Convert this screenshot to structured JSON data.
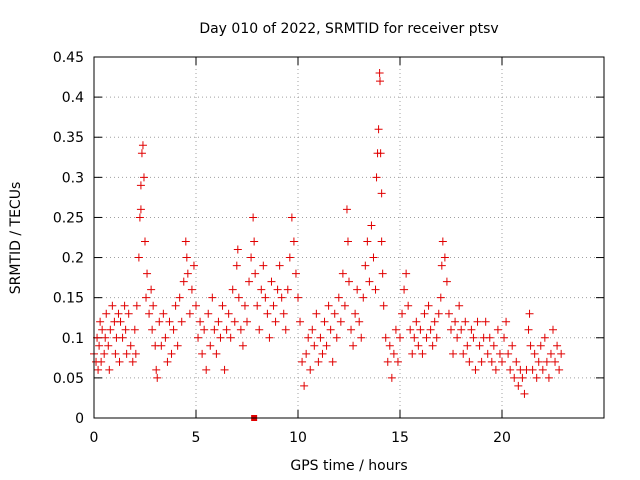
{
  "chart_data": {
    "type": "scatter",
    "title": "Day 010 of 2022, SRMTID for receiver ptsv",
    "xlabel": "GPS time / hours",
    "ylabel": "SRMTID / TECUs",
    "xlim": [
      0,
      25
    ],
    "ylim": [
      0,
      0.45
    ],
    "grid": true,
    "marker": "+",
    "color": "#e00000",
    "x_ticks": [
      0,
      5,
      10,
      15,
      20
    ],
    "x_tick_labels": [
      "0",
      "5",
      "10",
      "15",
      "20"
    ],
    "y_ticks": [
      0,
      0.05,
      0.1,
      0.15,
      0.2,
      0.25,
      0.3,
      0.35,
      0.4,
      0.45
    ],
    "y_tick_labels": [
      "0",
      "0.05",
      "0.1",
      "0.15",
      "0.2",
      "0.25",
      "0.3",
      "0.35",
      "0.4",
      "0.45"
    ],
    "series": [
      {
        "name": "SRMTID",
        "points": [
          [
            0.0,
            0.08
          ],
          [
            0.1,
            0.07
          ],
          [
            0.15,
            0.1
          ],
          [
            0.2,
            0.06
          ],
          [
            0.25,
            0.09
          ],
          [
            0.3,
            0.12
          ],
          [
            0.35,
            0.07
          ],
          [
            0.4,
            0.11
          ],
          [
            0.5,
            0.08
          ],
          [
            0.55,
            0.1
          ],
          [
            0.6,
            0.13
          ],
          [
            0.7,
            0.09
          ],
          [
            0.75,
            0.06
          ],
          [
            0.8,
            0.11
          ],
          [
            0.9,
            0.14
          ],
          [
            1.0,
            0.12
          ],
          [
            1.05,
            0.08
          ],
          [
            1.1,
            0.1
          ],
          [
            1.2,
            0.13
          ],
          [
            1.25,
            0.07
          ],
          [
            1.3,
            0.12
          ],
          [
            1.4,
            0.1
          ],
          [
            1.5,
            0.14
          ],
          [
            1.55,
            0.11
          ],
          [
            1.6,
            0.08
          ],
          [
            1.7,
            0.13
          ],
          [
            1.8,
            0.09
          ],
          [
            1.9,
            0.07
          ],
          [
            2.0,
            0.11
          ],
          [
            2.05,
            0.08
          ],
          [
            2.1,
            0.14
          ],
          [
            2.2,
            0.2
          ],
          [
            2.25,
            0.25
          ],
          [
            2.3,
            0.29
          ],
          [
            2.35,
            0.33
          ],
          [
            2.4,
            0.34
          ],
          [
            2.45,
            0.3
          ],
          [
            2.3,
            0.26
          ],
          [
            2.5,
            0.22
          ],
          [
            2.6,
            0.18
          ],
          [
            2.55,
            0.15
          ],
          [
            2.7,
            0.13
          ],
          [
            2.8,
            0.16
          ],
          [
            2.85,
            0.11
          ],
          [
            2.9,
            0.14
          ],
          [
            3.0,
            0.09
          ],
          [
            3.05,
            0.06
          ],
          [
            3.1,
            0.05
          ],
          [
            3.2,
            0.12
          ],
          [
            3.3,
            0.09
          ],
          [
            3.4,
            0.13
          ],
          [
            3.5,
            0.1
          ],
          [
            3.6,
            0.07
          ],
          [
            3.7,
            0.12
          ],
          [
            3.8,
            0.08
          ],
          [
            3.9,
            0.11
          ],
          [
            4.0,
            0.14
          ],
          [
            4.1,
            0.09
          ],
          [
            4.2,
            0.15
          ],
          [
            4.3,
            0.12
          ],
          [
            4.4,
            0.17
          ],
          [
            4.5,
            0.22
          ],
          [
            4.55,
            0.2
          ],
          [
            4.6,
            0.18
          ],
          [
            4.7,
            0.13
          ],
          [
            4.8,
            0.16
          ],
          [
            4.9,
            0.19
          ],
          [
            5.0,
            0.14
          ],
          [
            5.1,
            0.1
          ],
          [
            5.2,
            0.12
          ],
          [
            5.3,
            0.08
          ],
          [
            5.4,
            0.11
          ],
          [
            5.5,
            0.06
          ],
          [
            5.6,
            0.13
          ],
          [
            5.7,
            0.09
          ],
          [
            5.8,
            0.15
          ],
          [
            5.9,
            0.11
          ],
          [
            6.0,
            0.08
          ],
          [
            6.1,
            0.12
          ],
          [
            6.2,
            0.1
          ],
          [
            6.3,
            0.14
          ],
          [
            6.4,
            0.06
          ],
          [
            6.5,
            0.11
          ],
          [
            6.6,
            0.13
          ],
          [
            6.7,
            0.1
          ],
          [
            6.8,
            0.16
          ],
          [
            6.9,
            0.12
          ],
          [
            7.0,
            0.19
          ],
          [
            7.05,
            0.21
          ],
          [
            7.1,
            0.15
          ],
          [
            7.2,
            0.11
          ],
          [
            7.3,
            0.09
          ],
          [
            7.4,
            0.14
          ],
          [
            7.5,
            0.12
          ],
          [
            7.6,
            0.17
          ],
          [
            7.7,
            0.2
          ],
          [
            7.8,
            0.25
          ],
          [
            7.85,
            0.22
          ],
          [
            7.9,
            0.18
          ],
          [
            8.0,
            0.14
          ],
          [
            8.1,
            0.11
          ],
          [
            8.2,
            0.16
          ],
          [
            8.3,
            0.19
          ],
          [
            8.4,
            0.15
          ],
          [
            8.5,
            0.13
          ],
          [
            8.6,
            0.1
          ],
          [
            8.7,
            0.17
          ],
          [
            8.8,
            0.14
          ],
          [
            8.9,
            0.12
          ],
          [
            9.0,
            0.16
          ],
          [
            9.1,
            0.19
          ],
          [
            9.2,
            0.15
          ],
          [
            9.3,
            0.13
          ],
          [
            9.4,
            0.11
          ],
          [
            9.5,
            0.16
          ],
          [
            9.6,
            0.2
          ],
          [
            9.7,
            0.25
          ],
          [
            9.8,
            0.22
          ],
          [
            9.9,
            0.18
          ],
          [
            10.0,
            0.15
          ],
          [
            10.1,
            0.12
          ],
          [
            10.2,
            0.07
          ],
          [
            10.3,
            0.04
          ],
          [
            10.4,
            0.08
          ],
          [
            10.5,
            0.1
          ],
          [
            10.6,
            0.06
          ],
          [
            10.7,
            0.11
          ],
          [
            10.8,
            0.09
          ],
          [
            10.9,
            0.13
          ],
          [
            11.0,
            0.07
          ],
          [
            11.1,
            0.1
          ],
          [
            11.2,
            0.08
          ],
          [
            11.3,
            0.12
          ],
          [
            11.4,
            0.09
          ],
          [
            11.5,
            0.14
          ],
          [
            11.6,
            0.11
          ],
          [
            11.7,
            0.07
          ],
          [
            11.8,
            0.13
          ],
          [
            11.9,
            0.1
          ],
          [
            12.0,
            0.15
          ],
          [
            12.1,
            0.12
          ],
          [
            12.2,
            0.18
          ],
          [
            12.3,
            0.14
          ],
          [
            12.4,
            0.26
          ],
          [
            12.45,
            0.22
          ],
          [
            12.5,
            0.17
          ],
          [
            12.6,
            0.11
          ],
          [
            12.7,
            0.09
          ],
          [
            12.8,
            0.13
          ],
          [
            12.9,
            0.16
          ],
          [
            13.0,
            0.12
          ],
          [
            13.1,
            0.1
          ],
          [
            13.2,
            0.15
          ],
          [
            13.3,
            0.19
          ],
          [
            13.4,
            0.22
          ],
          [
            13.5,
            0.17
          ],
          [
            13.6,
            0.24
          ],
          [
            13.7,
            0.2
          ],
          [
            13.8,
            0.16
          ],
          [
            13.85,
            0.3
          ],
          [
            13.9,
            0.33
          ],
          [
            13.95,
            0.36
          ],
          [
            14.0,
            0.43
          ],
          [
            14.02,
            0.42
          ],
          [
            14.05,
            0.33
          ],
          [
            14.1,
            0.28
          ],
          [
            14.1,
            0.22
          ],
          [
            14.15,
            0.18
          ],
          [
            14.2,
            0.14
          ],
          [
            14.3,
            0.1
          ],
          [
            14.4,
            0.07
          ],
          [
            14.5,
            0.09
          ],
          [
            14.6,
            0.05
          ],
          [
            14.7,
            0.08
          ],
          [
            14.8,
            0.11
          ],
          [
            14.9,
            0.07
          ],
          [
            15.0,
            0.1
          ],
          [
            15.1,
            0.13
          ],
          [
            15.2,
            0.16
          ],
          [
            15.3,
            0.18
          ],
          [
            15.4,
            0.14
          ],
          [
            15.5,
            0.11
          ],
          [
            15.6,
            0.08
          ],
          [
            15.7,
            0.1
          ],
          [
            15.8,
            0.12
          ],
          [
            15.9,
            0.09
          ],
          [
            16.0,
            0.11
          ],
          [
            16.1,
            0.08
          ],
          [
            16.2,
            0.13
          ],
          [
            16.3,
            0.1
          ],
          [
            16.4,
            0.14
          ],
          [
            16.5,
            0.11
          ],
          [
            16.6,
            0.09
          ],
          [
            16.7,
            0.12
          ],
          [
            16.8,
            0.1
          ],
          [
            16.9,
            0.13
          ],
          [
            17.0,
            0.15
          ],
          [
            17.05,
            0.19
          ],
          [
            17.1,
            0.22
          ],
          [
            17.2,
            0.2
          ],
          [
            17.3,
            0.17
          ],
          [
            17.4,
            0.13
          ],
          [
            17.5,
            0.11
          ],
          [
            17.6,
            0.08
          ],
          [
            17.7,
            0.12
          ],
          [
            17.8,
            0.1
          ],
          [
            17.9,
            0.14
          ],
          [
            18.0,
            0.11
          ],
          [
            18.1,
            0.08
          ],
          [
            18.2,
            0.12
          ],
          [
            18.3,
            0.09
          ],
          [
            18.4,
            0.07
          ],
          [
            18.5,
            0.11
          ],
          [
            18.6,
            0.1
          ],
          [
            18.7,
            0.06
          ],
          [
            18.8,
            0.12
          ],
          [
            18.9,
            0.09
          ],
          [
            19.0,
            0.07
          ],
          [
            19.1,
            0.1
          ],
          [
            19.2,
            0.12
          ],
          [
            19.3,
            0.08
          ],
          [
            19.4,
            0.1
          ],
          [
            19.5,
            0.07
          ],
          [
            19.6,
            0.09
          ],
          [
            19.7,
            0.06
          ],
          [
            19.8,
            0.11
          ],
          [
            19.9,
            0.08
          ],
          [
            20.0,
            0.07
          ],
          [
            20.1,
            0.1
          ],
          [
            20.2,
            0.12
          ],
          [
            20.3,
            0.08
          ],
          [
            20.4,
            0.06
          ],
          [
            20.5,
            0.09
          ],
          [
            20.6,
            0.05
          ],
          [
            20.7,
            0.07
          ],
          [
            20.8,
            0.04
          ],
          [
            20.9,
            0.06
          ],
          [
            21.0,
            0.05
          ],
          [
            21.1,
            0.03
          ],
          [
            21.2,
            0.06
          ],
          [
            21.3,
            0.11
          ],
          [
            21.35,
            0.13
          ],
          [
            21.4,
            0.09
          ],
          [
            21.5,
            0.06
          ],
          [
            21.6,
            0.08
          ],
          [
            21.7,
            0.05
          ],
          [
            21.8,
            0.07
          ],
          [
            21.9,
            0.09
          ],
          [
            22.0,
            0.06
          ],
          [
            22.1,
            0.1
          ],
          [
            22.2,
            0.07
          ],
          [
            22.3,
            0.05
          ],
          [
            22.4,
            0.08
          ],
          [
            22.5,
            0.11
          ],
          [
            22.6,
            0.07
          ],
          [
            22.7,
            0.09
          ],
          [
            22.8,
            0.06
          ],
          [
            22.9,
            0.08
          ]
        ]
      }
    ],
    "markers_square": [
      [
        7.85,
        0.0
      ]
    ]
  }
}
